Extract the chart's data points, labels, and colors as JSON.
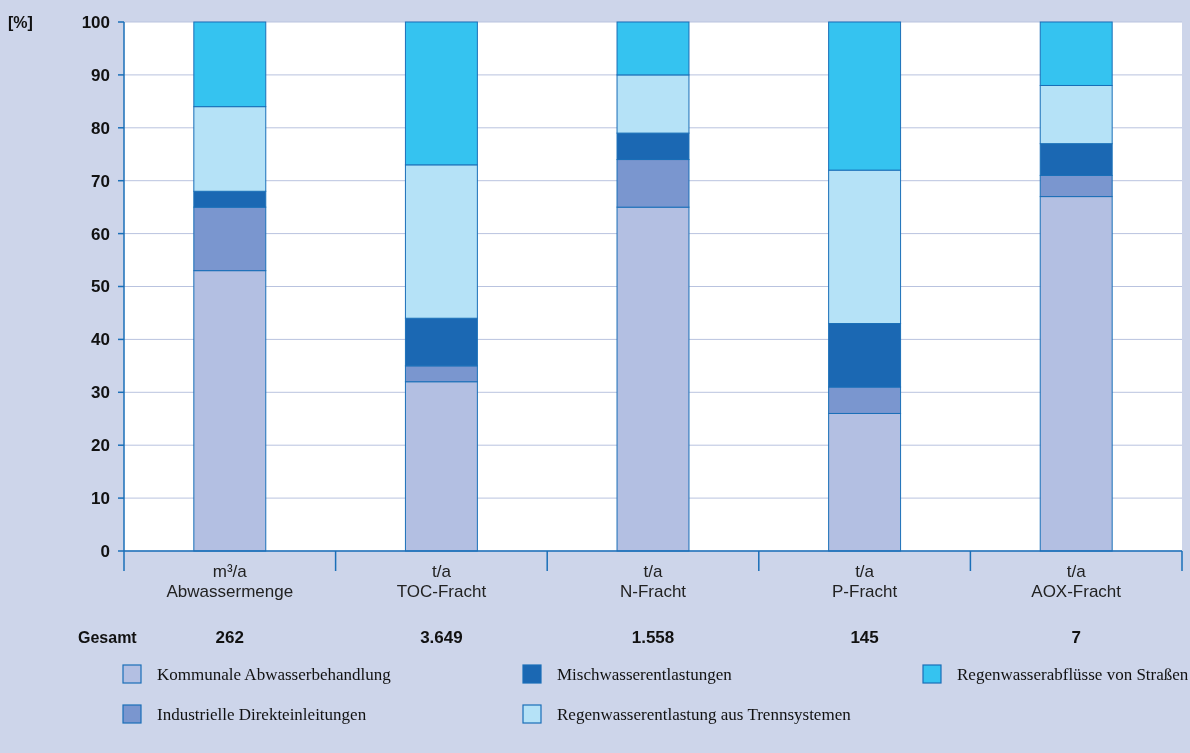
{
  "chart_data": {
    "type": "bar",
    "stacked": true,
    "ylabel": "[%]",
    "categories": [
      "m³/a\nAbwassermenge",
      "t/a\nTOC-Fracht",
      "t/a\nN-Fracht",
      "t/a\nP-Fracht",
      "t/a\nAOX-Fracht"
    ],
    "series": [
      {
        "name": "Kommunale Abwasserbehandlung",
        "color": "#b3bfe2",
        "values": [
          53,
          32,
          65,
          26,
          67
        ]
      },
      {
        "name": "Industrielle Direkteinleitungen",
        "color": "#7a96cf",
        "values": [
          12,
          3,
          9,
          5,
          4
        ]
      },
      {
        "name": "Mischwasserentlastungen",
        "color": "#1b68b3",
        "values": [
          3,
          9,
          5,
          12,
          6
        ]
      },
      {
        "name": "Regenwasserentlastung aus Trennsystemen",
        "color": "#b5e2f7",
        "values": [
          16,
          29,
          11,
          29,
          11
        ]
      },
      {
        "name": "Regenwasserabflüsse von Straßen",
        "color": "#35c3f0",
        "values": [
          16,
          27,
          10,
          28,
          12
        ]
      }
    ],
    "ylim": [
      0,
      100
    ],
    "yticks": [
      0,
      10,
      20,
      30,
      40,
      50,
      60,
      70,
      80,
      90,
      100
    ],
    "grid": "y",
    "legend": "bottom",
    "annotations": [
      "Gesamt",
      "262",
      "3.649",
      "1.558",
      "145",
      "7"
    ]
  }
}
